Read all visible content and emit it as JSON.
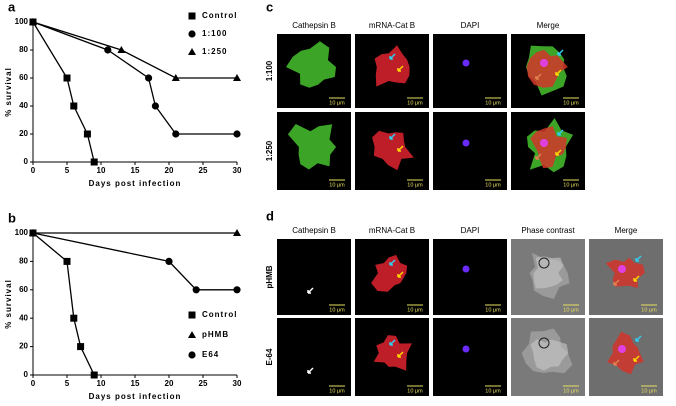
{
  "chart_data": [
    {
      "type": "line",
      "panel": "a",
      "x_label": "Days post infection",
      "y_label": "% survival",
      "xlim": [
        0,
        30
      ],
      "xticks": [
        0,
        5,
        10,
        15,
        20,
        25,
        30
      ],
      "ylim": [
        0,
        100
      ],
      "yticks": [
        0,
        20,
        40,
        60,
        80,
        100
      ],
      "legend": "upper right",
      "series": [
        {
          "name": "Control",
          "color": "#000000",
          "marker": "square",
          "x": [
            0,
            5,
            6,
            8,
            9
          ],
          "values": [
            100,
            60,
            40,
            20,
            0
          ]
        },
        {
          "name": "1:100",
          "color": "#000000",
          "marker": "circle",
          "x": [
            0,
            11,
            17,
            18,
            21,
            30
          ],
          "values": [
            100,
            80,
            60,
            40,
            20,
            20
          ]
        },
        {
          "name": "1:250",
          "color": "#000000",
          "marker": "triangle",
          "x": [
            0,
            13,
            21,
            30
          ],
          "values": [
            100,
            80,
            60,
            60
          ]
        }
      ]
    },
    {
      "type": "line",
      "panel": "b",
      "x_label": "Days post infection",
      "y_label": "% survival",
      "xlim": [
        0,
        30
      ],
      "xticks": [
        0,
        5,
        10,
        15,
        20,
        25,
        30
      ],
      "ylim": [
        0,
        100
      ],
      "yticks": [
        0,
        20,
        40,
        60,
        80,
        100
      ],
      "legend": "lower right",
      "series": [
        {
          "name": "Control",
          "color": "#000000",
          "marker": "square",
          "x": [
            0,
            5,
            6,
            7,
            9
          ],
          "values": [
            100,
            80,
            40,
            20,
            0
          ]
        },
        {
          "name": "pHMB",
          "color": "#000000",
          "marker": "triangle",
          "x": [
            0,
            30
          ],
          "values": [
            100,
            100
          ]
        },
        {
          "name": "E64",
          "color": "#000000",
          "marker": "circle",
          "x": [
            0,
            20,
            24,
            30
          ],
          "values": [
            100,
            80,
            60,
            60
          ]
        }
      ]
    }
  ],
  "panels": [
    {
      "label": "c",
      "columns": [
        "Cathepsin B",
        "mRNA-Cat B",
        "DAPI",
        "Merge"
      ],
      "rows": [
        "1:100",
        "1:250"
      ],
      "scale_bar": "10 μm"
    },
    {
      "label": "d",
      "columns": [
        "Cathepsin B",
        "mRNA-Cat B",
        "DAPI",
        "Phase contrast",
        "Merge"
      ],
      "rows": [
        "pHMB",
        "E-64"
      ],
      "scale_bar": "10 μm"
    }
  ]
}
